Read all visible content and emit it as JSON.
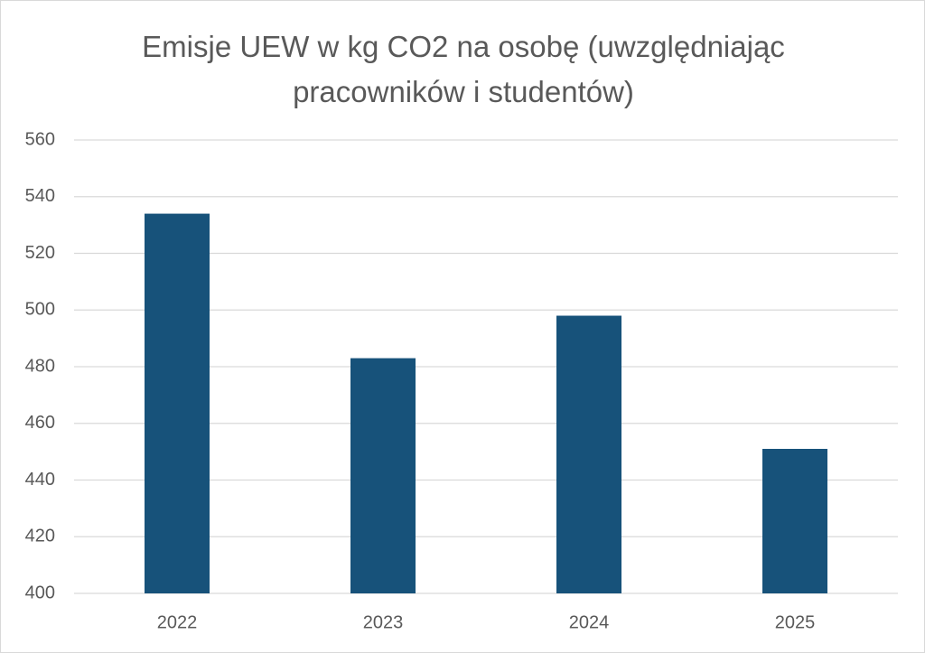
{
  "chart_data": {
    "type": "bar",
    "title": "Emisje UEW w kg CO2 na osobę (uwzględniając pracowników i studentów)",
    "categories": [
      "2022",
      "2023",
      "2024",
      "2025"
    ],
    "values": [
      534,
      483,
      498,
      451
    ],
    "color": "#17527a",
    "ylim": [
      400,
      560
    ],
    "yticks": [
      400,
      420,
      440,
      460,
      480,
      500,
      520,
      540,
      560
    ],
    "grid": true
  }
}
